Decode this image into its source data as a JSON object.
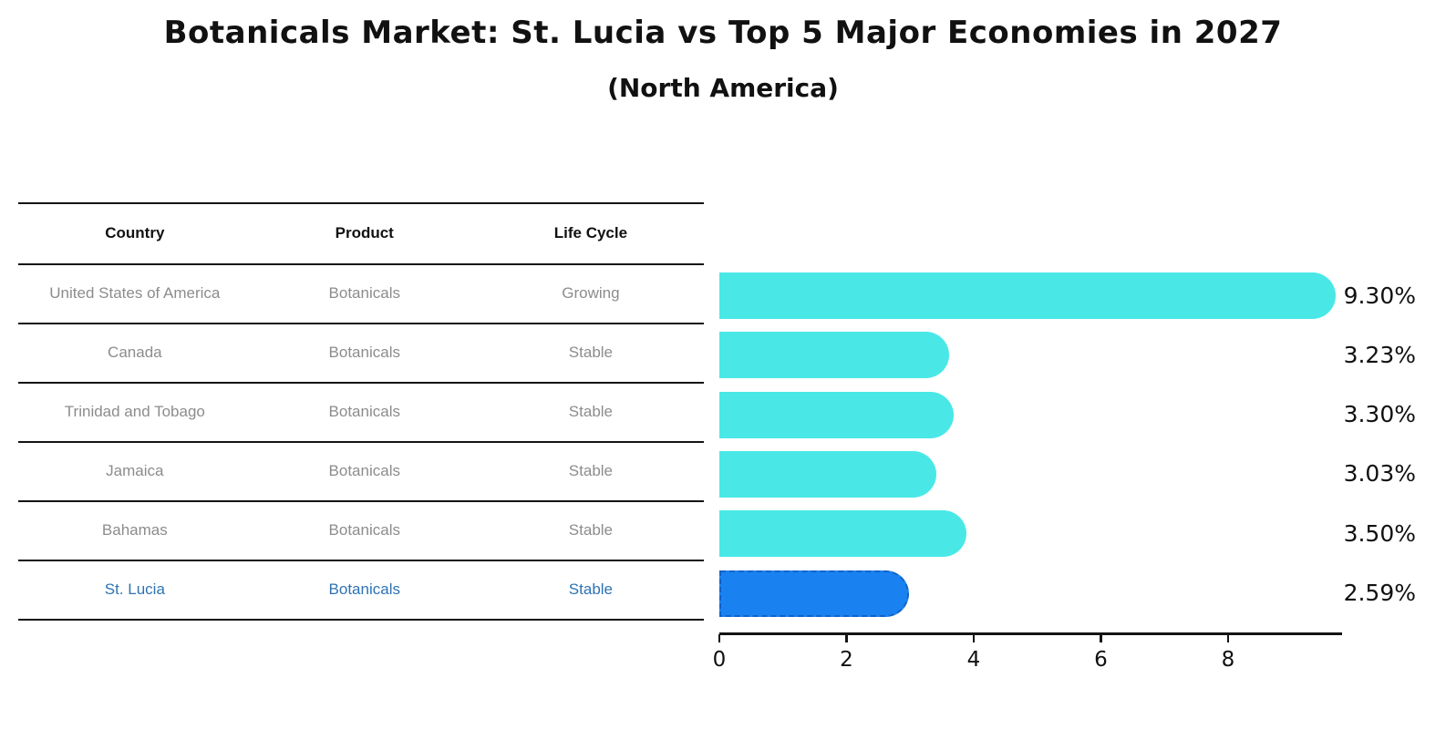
{
  "header": {
    "title": "Botanicals Market: St. Lucia vs Top 5 Major Economies in 2027",
    "subtitle": "(North America)"
  },
  "table": {
    "columns": [
      "Country",
      "Product",
      "Life Cycle"
    ],
    "rows": [
      {
        "country": "United States of America",
        "product": "Botanicals",
        "life_cycle": "Growing",
        "highlighted": false
      },
      {
        "country": "Canada",
        "product": "Botanicals",
        "life_cycle": "Stable",
        "highlighted": false
      },
      {
        "country": "Trinidad and Tobago",
        "product": "Botanicals",
        "life_cycle": "Stable",
        "highlighted": false
      },
      {
        "country": "Jamaica",
        "product": "Botanicals",
        "life_cycle": "Stable",
        "highlighted": false
      },
      {
        "country": "Bahamas",
        "product": "Botanicals",
        "life_cycle": "Stable",
        "highlighted": false
      },
      {
        "country": "St. Lucia",
        "product": "Botanicals",
        "life_cycle": "Stable",
        "highlighted": true
      }
    ]
  },
  "chart_data": {
    "type": "bar",
    "orientation": "horizontal",
    "title": "Botanicals Market: St. Lucia vs Top 5 Major Economies in 2027",
    "subtitle": "(North America)",
    "categories": [
      "United States of America",
      "Canada",
      "Trinidad and Tobago",
      "Jamaica",
      "Bahamas",
      "St. Lucia"
    ],
    "values": [
      9.3,
      3.23,
      3.3,
      3.03,
      3.5,
      2.59
    ],
    "value_labels": [
      "9.30%",
      "3.23%",
      "3.30%",
      "3.03%",
      "3.50%",
      "2.59%"
    ],
    "highlight_index": 5,
    "xticks": [
      0,
      2,
      4,
      6,
      8
    ],
    "xlim": [
      0,
      9.77
    ],
    "xlabel": "",
    "ylabel": "",
    "grid": false,
    "legend": "none",
    "colors": {
      "bar_default": "#49E8E6",
      "bar_highlight": "#1982F0",
      "bar_highlight_border": "#0F62C8",
      "table_text": "#8C8C8C",
      "table_highlight_text": "#2D73B4",
      "text": "#111111",
      "line": "#141414"
    }
  }
}
